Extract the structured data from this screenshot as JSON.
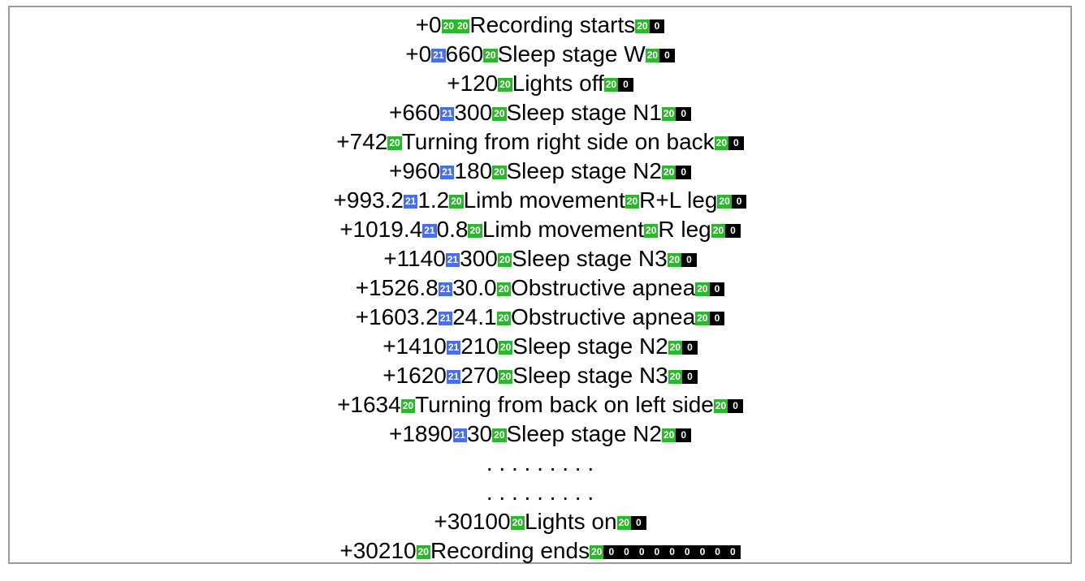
{
  "lines": [
    [
      {
        "text": "+0"
      },
      {
        "code": "20"
      },
      {
        "code": "20"
      },
      {
        "text": "Recording starts"
      },
      {
        "code": "20"
      },
      {
        "code": "0"
      }
    ],
    [
      {
        "text": "+0"
      },
      {
        "code": "21"
      },
      {
        "text": "660"
      },
      {
        "code": "20"
      },
      {
        "text": "Sleep stage W"
      },
      {
        "code": "20"
      },
      {
        "code": "0"
      }
    ],
    [
      {
        "text": "+120"
      },
      {
        "code": "20"
      },
      {
        "text": "Lights off"
      },
      {
        "code": "20"
      },
      {
        "code": "0"
      }
    ],
    [
      {
        "text": "+660"
      },
      {
        "code": "21"
      },
      {
        "text": "300"
      },
      {
        "code": "20"
      },
      {
        "text": "Sleep stage N1"
      },
      {
        "code": "20"
      },
      {
        "code": "0"
      }
    ],
    [
      {
        "text": "+742"
      },
      {
        "code": "20"
      },
      {
        "text": "Turning from right side on back"
      },
      {
        "code": "20"
      },
      {
        "code": "0"
      }
    ],
    [
      {
        "text": "+960"
      },
      {
        "code": "21"
      },
      {
        "text": "180"
      },
      {
        "code": "20"
      },
      {
        "text": "Sleep stage N2"
      },
      {
        "code": "20"
      },
      {
        "code": "0"
      }
    ],
    [
      {
        "text": "+993.2"
      },
      {
        "code": "21"
      },
      {
        "text": "1.2"
      },
      {
        "code": "20"
      },
      {
        "text": "Limb movement"
      },
      {
        "code": "20"
      },
      {
        "text": "R+L leg"
      },
      {
        "code": "20"
      },
      {
        "code": "0"
      }
    ],
    [
      {
        "text": "+1019.4"
      },
      {
        "code": "21"
      },
      {
        "text": "0.8"
      },
      {
        "code": "20"
      },
      {
        "text": "Limb movement"
      },
      {
        "code": "20"
      },
      {
        "text": "R leg"
      },
      {
        "code": "20"
      },
      {
        "code": "0"
      }
    ],
    [
      {
        "text": "+1140"
      },
      {
        "code": "21"
      },
      {
        "text": "300"
      },
      {
        "code": "20"
      },
      {
        "text": "Sleep stage N3"
      },
      {
        "code": "20"
      },
      {
        "code": "0"
      }
    ],
    [
      {
        "text": "+1526.8"
      },
      {
        "code": "21"
      },
      {
        "text": "30.0"
      },
      {
        "code": "20"
      },
      {
        "text": "Obstructive apnea"
      },
      {
        "code": "20"
      },
      {
        "code": "0"
      }
    ],
    [
      {
        "text": "+1603.2"
      },
      {
        "code": "21"
      },
      {
        "text": "24.1"
      },
      {
        "code": "20"
      },
      {
        "text": "Obstructive apnea"
      },
      {
        "code": "20"
      },
      {
        "code": "0"
      }
    ],
    [
      {
        "text": "+1410"
      },
      {
        "code": "21"
      },
      {
        "text": "210"
      },
      {
        "code": "20"
      },
      {
        "text": "Sleep stage N2"
      },
      {
        "code": "20"
      },
      {
        "code": "0"
      }
    ],
    [
      {
        "text": "+1620"
      },
      {
        "code": "21"
      },
      {
        "text": "270"
      },
      {
        "code": "20"
      },
      {
        "text": "Sleep stage N3"
      },
      {
        "code": "20"
      },
      {
        "code": "0"
      }
    ],
    [
      {
        "text": "+1634"
      },
      {
        "code": "20"
      },
      {
        "text": "Turning from back on left side"
      },
      {
        "code": "20"
      },
      {
        "code": "0"
      }
    ],
    [
      {
        "text": "+1890"
      },
      {
        "code": "21"
      },
      {
        "text": "30"
      },
      {
        "code": "20"
      },
      {
        "text": "Sleep stage N2"
      },
      {
        "code": "20"
      },
      {
        "code": "0"
      }
    ],
    [
      {
        "text": ". . . . . . . . ."
      }
    ],
    [
      {
        "text": ". . . . . . . . ."
      }
    ],
    [
      {
        "text": "+30100"
      },
      {
        "code": "20"
      },
      {
        "text": "Lights on"
      },
      {
        "code": "20"
      },
      {
        "code": "0"
      }
    ],
    [
      {
        "text": "+30210"
      },
      {
        "code": "20"
      },
      {
        "text": "Recording ends"
      },
      {
        "code": "20"
      },
      {
        "code": "0"
      },
      {
        "code": "0"
      },
      {
        "code": "0"
      },
      {
        "code": "0"
      },
      {
        "code": "0"
      },
      {
        "code": "0"
      },
      {
        "code": "0"
      },
      {
        "code": "0"
      },
      {
        "code": "0"
      }
    ]
  ]
}
